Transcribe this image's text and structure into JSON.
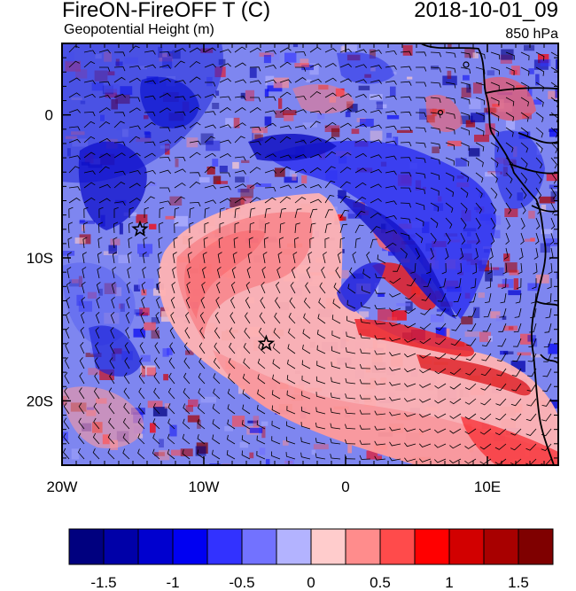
{
  "header": {
    "title": "FireON-FireOFF T (C)",
    "datetime": "2018-10-01_09",
    "subtitle": "Geopotential Height (m)",
    "level": "850 hPa"
  },
  "map": {
    "lon_ticks": [
      {
        "value": -20,
        "label": "20W"
      },
      {
        "value": -10,
        "label": "10W"
      },
      {
        "value": 0,
        "label": "0"
      },
      {
        "value": 10,
        "label": "10E"
      }
    ],
    "lat_ticks": [
      {
        "value": 0,
        "label": "0"
      },
      {
        "value": -10,
        "label": "10S"
      },
      {
        "value": -20,
        "label": "20S"
      }
    ],
    "lon_range": [
      -20,
      15
    ],
    "lat_range": [
      -24.5,
      5
    ],
    "stars_lonlat": [
      [
        -14.5,
        -8
      ],
      [
        -5.6,
        -16
      ]
    ]
  },
  "colorbar": {
    "colors": [
      "#00007f",
      "#0000a8",
      "#0000cf",
      "#0000f2",
      "#3232ff",
      "#7272ff",
      "#b3b3ff",
      "#ffcccc",
      "#ff8c8c",
      "#ff4b4b",
      "#ff0000",
      "#d20000",
      "#a80000",
      "#7f0000"
    ],
    "tick_labels": [
      "-1.5",
      "-1",
      "-0.5",
      "0",
      "0.5",
      "1",
      "1.5"
    ],
    "tick_values": [
      -1.5,
      -1,
      -0.5,
      0,
      0.5,
      1,
      1.5
    ],
    "range": [
      -1.75,
      1.75
    ]
  }
}
